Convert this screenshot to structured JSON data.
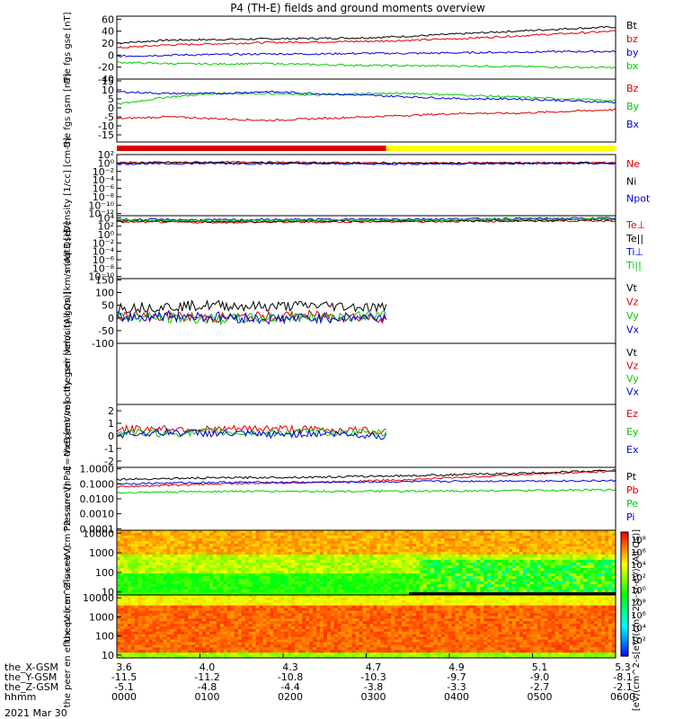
{
  "title": "P4 (TH-E) fields and ground moments overview",
  "colors": {
    "black": "#000000",
    "red": "#dd0000",
    "green": "#00cc00",
    "blue": "#0000dd",
    "yellow": "#ffff00"
  },
  "mode_bar": {
    "segments": [
      {
        "color": "red",
        "x_start": 0,
        "x_end": 0.54
      },
      {
        "color": "yellow",
        "x_start": 0.54,
        "x_end": 1.0
      }
    ]
  },
  "chart_data": [
    {
      "id": "fgs_gse",
      "type": "line",
      "ylabel": "the fgs gse [nT]",
      "ylim": [
        -40,
        65
      ],
      "yticks": [
        "60",
        "40",
        "20",
        "0",
        "-20",
        "-40"
      ],
      "yvals": [
        60,
        40,
        20,
        0,
        -20,
        -40
      ],
      "legend": [
        "Bt",
        "bz",
        "by",
        "bx"
      ],
      "legend_colors": [
        "black",
        "red",
        "blue",
        "green"
      ],
      "series": [
        {
          "name": "Bt",
          "color": "black",
          "x": [
            0,
            0.1,
            0.2,
            0.3,
            0.4,
            0.5,
            0.6,
            0.7,
            0.8,
            0.9,
            1.0
          ],
          "y": [
            20,
            25,
            26,
            27,
            28,
            29,
            32,
            36,
            40,
            44,
            47
          ]
        },
        {
          "name": "bz",
          "color": "red",
          "x": [
            0,
            0.1,
            0.2,
            0.3,
            0.4,
            0.5,
            0.6,
            0.7,
            0.8,
            0.9,
            1.0
          ],
          "y": [
            12,
            17,
            19,
            21,
            22,
            23,
            25,
            28,
            32,
            36,
            40
          ]
        },
        {
          "name": "by",
          "color": "blue",
          "x": [
            0,
            0.1,
            0.2,
            0.3,
            0.4,
            0.5,
            0.6,
            0.7,
            0.8,
            0.9,
            1.0
          ],
          "y": [
            -2,
            0,
            1,
            2,
            2,
            3,
            3,
            4,
            5,
            6,
            6
          ]
        },
        {
          "name": "bx",
          "color": "green",
          "x": [
            0,
            0.1,
            0.2,
            0.3,
            0.4,
            0.5,
            0.6,
            0.7,
            0.8,
            0.9,
            1.0
          ],
          "y": [
            -12,
            -14,
            -15,
            -14,
            -16,
            -17,
            -18,
            -18,
            -19,
            -20,
            -21
          ]
        }
      ]
    },
    {
      "id": "fgs_gsm",
      "type": "line",
      "ylabel": "the fgs gsm [nT]",
      "ylim": [
        -19,
        16
      ],
      "yticks": [
        "15",
        "10",
        "5",
        "0",
        "-5",
        "-10",
        "-15"
      ],
      "yvals": [
        15,
        10,
        5,
        0,
        -5,
        -10,
        -15
      ],
      "legend": [
        "Bz",
        "By",
        "Bx"
      ],
      "legend_colors": [
        "red",
        "green",
        "blue"
      ],
      "series": [
        {
          "name": "Bz",
          "color": "red",
          "x": [
            0,
            0.1,
            0.2,
            0.3,
            0.4,
            0.5,
            0.6,
            0.7,
            0.8,
            0.9,
            1.0
          ],
          "y": [
            -6,
            -5,
            -6,
            -7,
            -6,
            -5,
            -4,
            -3,
            -3,
            -2,
            -1
          ]
        },
        {
          "name": "By",
          "color": "green",
          "x": [
            0,
            0.1,
            0.2,
            0.3,
            0.4,
            0.5,
            0.6,
            0.7,
            0.8,
            0.9,
            1.0
          ],
          "y": [
            2,
            6,
            8,
            8,
            7,
            8,
            8,
            7,
            6,
            5,
            4
          ]
        },
        {
          "name": "Bx",
          "color": "blue",
          "x": [
            0,
            0.1,
            0.2,
            0.3,
            0.4,
            0.5,
            0.6,
            0.7,
            0.8,
            0.9,
            1.0
          ],
          "y": [
            9,
            8,
            8,
            9,
            8,
            7,
            6,
            5,
            5,
            4,
            3
          ]
        }
      ]
    },
    {
      "id": "density",
      "type": "line",
      "ylog": true,
      "ylabel": "Density [1/cc] [cm-3]",
      "ylim": [
        -12.5,
        2
      ],
      "yticks": [
        "10²",
        "10⁰",
        "10⁻²",
        "10⁻⁴",
        "10⁻⁶",
        "10⁻⁸",
        "10⁻¹⁰",
        "10⁻¹²"
      ],
      "yvals": [
        2,
        0,
        -2,
        -4,
        -6,
        -8,
        -10,
        -12
      ],
      "legend": [
        "Ne",
        "Ni",
        "Npot"
      ],
      "legend_colors": [
        "red",
        "black",
        "blue"
      ],
      "series": [
        {
          "name": "Ne",
          "color": "red",
          "x": [
            0,
            0.2,
            0.4,
            0.6,
            0.8,
            1.0
          ],
          "y": [
            0.1,
            0.2,
            0.1,
            0.0,
            0.05,
            0.1
          ]
        },
        {
          "name": "Ni",
          "color": "black",
          "x": [
            0,
            0.2,
            0.4,
            0.6,
            0.8,
            1.0
          ],
          "y": [
            0.0,
            0.1,
            0.0,
            -0.1,
            -0.05,
            0.0
          ]
        },
        {
          "name": "Npot",
          "color": "blue",
          "x": [
            0,
            0.2,
            0.4,
            0.6,
            0.8,
            1.0
          ],
          "y": [
            -0.2,
            -0.1,
            -0.2,
            -0.2,
            -0.15,
            -0.1
          ]
        }
      ]
    },
    {
      "id": "temperature",
      "type": "line",
      "ylog": true,
      "ylabel": "moqt3 [eV]",
      "ylim": [
        -10.5,
        4.5
      ],
      "yticks": [
        "10⁴",
        "10²",
        "10⁰",
        "10⁻²",
        "10⁻⁴",
        "10⁻⁶",
        "10⁻⁸",
        "10⁻¹⁰"
      ],
      "yvals": [
        4,
        2,
        0,
        -2,
        -4,
        -6,
        -8,
        -10
      ],
      "legend": [
        "Te⊥",
        "Te||",
        "Ti⊥",
        "Ti||"
      ],
      "legend_colors": [
        "red",
        "black",
        "blue",
        "green"
      ],
      "series": [
        {
          "name": "Te⊥",
          "color": "red",
          "x": [
            0,
            0.2,
            0.4,
            0.6,
            0.8,
            1.0
          ],
          "y": [
            3.0,
            2.9,
            3.0,
            3.1,
            3.2,
            3.3
          ]
        },
        {
          "name": "Te||",
          "color": "black",
          "x": [
            0,
            0.2,
            0.4,
            0.6,
            0.8,
            1.0
          ],
          "y": [
            3.2,
            3.1,
            3.2,
            3.3,
            3.4,
            3.5
          ]
        },
        {
          "name": "Ti⊥",
          "color": "blue",
          "x": [
            0,
            0.2,
            0.4,
            0.6,
            0.8,
            1.0
          ],
          "y": [
            3.6,
            3.5,
            3.6,
            3.7,
            3.8,
            3.9
          ]
        },
        {
          "name": "Ti||",
          "color": "green",
          "x": [
            0,
            0.2,
            0.4,
            0.6,
            0.8,
            1.0
          ],
          "y": [
            3.4,
            3.3,
            3.4,
            3.5,
            3.6,
            3.7
          ]
        }
      ]
    },
    {
      "id": "peir_velocity",
      "type": "line",
      "ylabel": "the peir velocity gsm [km/s (All Qs)]",
      "ylim": [
        -100,
        155
      ],
      "yticks": [
        "150",
        "100",
        "50",
        "0",
        "-50",
        "-100"
      ],
      "yvals": [
        150,
        100,
        50,
        0,
        -50,
        -100
      ],
      "legend": [
        "Vt",
        "Vz",
        "Vy",
        "Vx"
      ],
      "legend_colors": [
        "black",
        "red",
        "green",
        "blue"
      ],
      "series": [
        {
          "name": "Vt",
          "color": "black",
          "x": [
            0,
            0.1,
            0.2,
            0.3,
            0.4,
            0.54
          ],
          "y": [
            40,
            45,
            50,
            45,
            50,
            40
          ]
        },
        {
          "name": "Vz",
          "color": "red",
          "x": [
            0,
            0.1,
            0.2,
            0.3,
            0.4,
            0.54
          ],
          "y": [
            10,
            5,
            0,
            5,
            10,
            0
          ]
        },
        {
          "name": "Vy",
          "color": "green",
          "x": [
            0,
            0.1,
            0.2,
            0.3,
            0.4,
            0.54
          ],
          "y": [
            5,
            0,
            -5,
            0,
            5,
            10
          ]
        },
        {
          "name": "Vx",
          "color": "blue",
          "x": [
            0,
            0.1,
            0.2,
            0.3,
            0.4,
            0.54
          ],
          "y": [
            0,
            10,
            5,
            -5,
            0,
            5
          ]
        }
      ]
    },
    {
      "id": "peer_velocity",
      "type": "line",
      "ylabel": "the peer velocity gsm [km/s (All Qs)]",
      "legend": [
        "Vt",
        "Vz",
        "Vy",
        "Vx"
      ],
      "legend_colors": [
        "black",
        "red",
        "green",
        "blue"
      ],
      "series": []
    },
    {
      "id": "efield",
      "type": "line",
      "ylabel": "E=-VxB [mV/m]",
      "ylim": [
        -2.5,
        2.5
      ],
      "yticks": [
        "2",
        "1",
        "0",
        "-1",
        "-2"
      ],
      "yvals": [
        2,
        1,
        0,
        -1,
        -2
      ],
      "legend": [
        "Ez",
        "Ey",
        "Ex"
      ],
      "legend_colors": [
        "red",
        "green",
        "blue"
      ],
      "series": [
        {
          "name": "Ez",
          "color": "red",
          "x": [
            0,
            0.1,
            0.2,
            0.3,
            0.4,
            0.54
          ],
          "y": [
            0.5,
            0.6,
            0.5,
            0.6,
            0.5,
            0.4
          ]
        },
        {
          "name": "Ey",
          "color": "green",
          "x": [
            0,
            0.1,
            0.2,
            0.3,
            0.4,
            0.54
          ],
          "y": [
            0.3,
            0.2,
            0.3,
            0.2,
            0.3,
            0.2
          ]
        },
        {
          "name": "Ex",
          "color": "blue",
          "x": [
            0,
            0.1,
            0.2,
            0.3,
            0.4,
            0.54
          ],
          "y": [
            0.1,
            0.3,
            0.2,
            0.1,
            0.2,
            0.0
          ]
        }
      ]
    },
    {
      "id": "pressure",
      "type": "line",
      "ylog": true,
      "ylabel": "Pressure [nPa]",
      "ylim": [
        -4.1,
        0.1
      ],
      "yticks": [
        "1.0000",
        "0.1000",
        "0.0100",
        "0.0010",
        "0.0001"
      ],
      "yvals": [
        0,
        -1,
        -2,
        -3,
        -4
      ],
      "legend": [
        "Pt",
        "Pb",
        "Pe",
        "Pi"
      ],
      "legend_colors": [
        "black",
        "red",
        "green",
        "blue"
      ],
      "series": [
        {
          "name": "Pt",
          "color": "black",
          "x": [
            0,
            0.2,
            0.4,
            0.6,
            0.8,
            1.0
          ],
          "y": [
            -0.7,
            -0.6,
            -0.55,
            -0.45,
            -0.3,
            -0.1
          ]
        },
        {
          "name": "Pb",
          "color": "red",
          "x": [
            0,
            0.2,
            0.4,
            0.6,
            0.8,
            1.0
          ],
          "y": [
            -1.2,
            -1.0,
            -0.9,
            -0.7,
            -0.4,
            -0.15
          ]
        },
        {
          "name": "Pe",
          "color": "green",
          "x": [
            0,
            0.2,
            0.4,
            0.6,
            0.8,
            1.0
          ],
          "y": [
            -1.6,
            -1.5,
            -1.5,
            -1.5,
            -1.45,
            -1.4
          ]
        },
        {
          "name": "Pi",
          "color": "blue",
          "x": [
            0,
            0.2,
            0.4,
            0.6,
            0.8,
            1.0
          ],
          "y": [
            -1.0,
            -0.9,
            -0.9,
            -0.85,
            -0.8,
            -0.8
          ]
        }
      ]
    },
    {
      "id": "peir_eflux",
      "type": "heatmap",
      "ylabel": "the peir en eflux eV (cm^2-s-sr-eV)",
      "yticks": [
        "10000",
        "1000",
        "100",
        "10"
      ],
      "yvals": [
        4,
        3,
        2,
        1
      ]
    },
    {
      "id": "peer_eflux",
      "type": "heatmap",
      "ylabel": "the peer en eflux eV (cm^2-s-sr-eV)",
      "yticks": [
        "10000",
        "1000",
        "100",
        "10"
      ],
      "yvals": [
        4,
        3,
        2,
        1
      ]
    }
  ],
  "colorbar": {
    "ticks": [
      "10⁸",
      "10⁶",
      "10⁴",
      "10²",
      "10⁰",
      "10⁸",
      "10⁶",
      "10⁴",
      "10²"
    ],
    "label": "[eV/(cm^2-s[eV/(cm^2-s-sr-eV) (All Qs)]"
  },
  "xaxis": {
    "rows": [
      {
        "label": "the_X-GSM",
        "values": [
          "3.6",
          "4.0",
          "4.3",
          "4.7",
          "4.9",
          "5.1",
          "5.3"
        ]
      },
      {
        "label": "the_Y-GSM",
        "values": [
          "-11.5",
          "-11.2",
          "-10.8",
          "-10.3",
          "-9.7",
          "-9.0",
          "-8.1"
        ]
      },
      {
        "label": "the_Z-GSM",
        "values": [
          "-5.1",
          "-4.8",
          "-4.4",
          "-3.8",
          "-3.3",
          "-2.7",
          "-2.1"
        ]
      },
      {
        "label": "hhmm",
        "values": [
          "0000",
          "0100",
          "0200",
          "0300",
          "0400",
          "0500",
          "0600"
        ]
      }
    ],
    "date": "2021 Mar 30"
  }
}
